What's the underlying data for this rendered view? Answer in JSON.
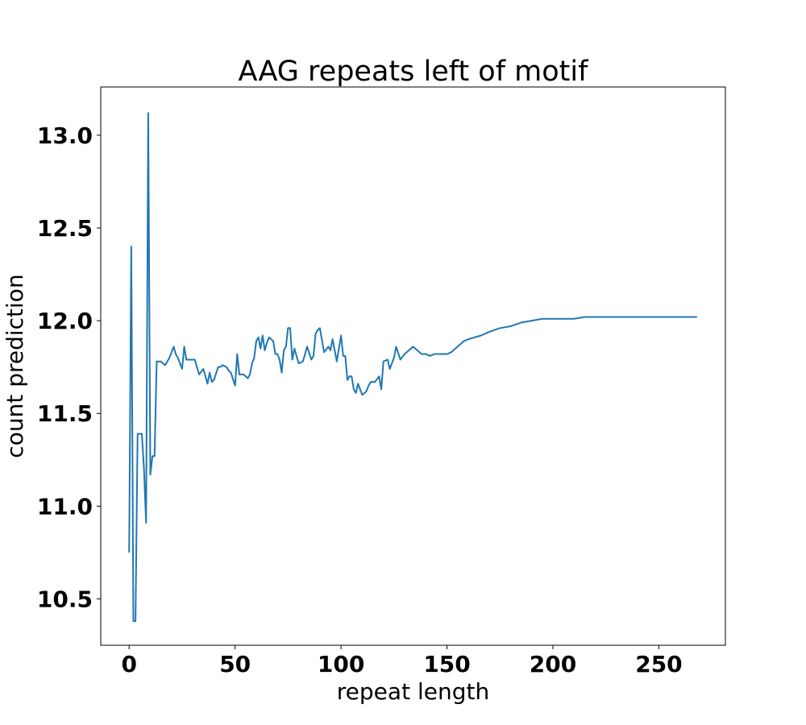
{
  "chart_data": {
    "type": "line",
    "title": "AAG repeats left of motif",
    "xlabel": "repeat length",
    "ylabel": "count prediction",
    "xlim": [
      -13.4,
      281.4
    ],
    "ylim": [
      10.25,
      13.26
    ],
    "x_ticks": [
      0,
      50,
      100,
      150,
      200,
      250
    ],
    "y_ticks": [
      10.5,
      11.0,
      11.5,
      12.0,
      12.5,
      13.0
    ],
    "x_tick_labels": [
      "0",
      "50",
      "100",
      "150",
      "200",
      "250"
    ],
    "y_tick_labels": [
      "10.5",
      "11.0",
      "11.5",
      "12.0",
      "12.5",
      "13.0"
    ],
    "grid": false,
    "series": [
      {
        "color": "#1f77b4",
        "x": [
          0,
          1,
          2,
          3,
          4,
          5,
          6,
          7,
          8,
          9,
          10,
          11,
          12,
          13,
          15,
          17,
          19,
          21,
          22,
          23,
          25,
          26,
          27,
          29,
          31,
          33,
          35,
          36,
          37,
          38,
          39,
          40,
          42,
          43,
          44,
          46,
          47,
          48,
          50,
          51,
          52,
          54,
          56,
          57,
          58,
          59,
          60,
          61,
          62,
          63,
          64,
          65,
          66,
          68,
          69,
          70,
          71,
          72,
          73,
          74,
          75,
          76,
          77,
          78,
          80,
          82,
          84,
          86,
          87,
          88,
          89,
          90,
          92,
          94,
          95,
          96,
          98,
          100,
          101,
          102,
          103,
          104,
          105,
          106,
          107,
          108,
          110,
          112,
          113,
          114,
          116,
          118,
          119,
          120,
          122,
          123,
          124,
          125,
          126,
          128,
          130,
          132,
          134,
          136,
          138,
          140,
          142,
          144,
          146,
          148,
          150,
          152,
          154,
          156,
          158,
          160,
          163,
          166,
          170,
          175,
          180,
          185,
          190,
          195,
          200,
          205,
          210,
          215,
          220,
          225,
          230,
          240,
          250,
          260,
          268
        ],
        "y": [
          10.75,
          12.4,
          10.38,
          10.38,
          11.39,
          11.39,
          11.39,
          11.2,
          10.91,
          13.12,
          11.17,
          11.27,
          11.27,
          11.78,
          11.78,
          11.76,
          11.8,
          11.86,
          11.82,
          11.8,
          11.74,
          11.86,
          11.79,
          11.79,
          11.79,
          11.71,
          11.74,
          11.7,
          11.66,
          11.72,
          11.67,
          11.68,
          11.75,
          11.75,
          11.76,
          11.75,
          11.73,
          11.72,
          11.65,
          11.82,
          11.71,
          11.71,
          11.69,
          11.71,
          11.77,
          11.8,
          11.89,
          11.91,
          11.85,
          11.92,
          11.84,
          11.88,
          11.91,
          11.89,
          11.82,
          11.82,
          11.79,
          11.72,
          11.84,
          11.86,
          11.96,
          11.96,
          11.79,
          11.85,
          11.77,
          11.78,
          11.86,
          11.79,
          11.81,
          11.93,
          11.95,
          11.96,
          11.83,
          11.86,
          11.84,
          11.9,
          11.78,
          11.92,
          11.81,
          11.81,
          11.68,
          11.7,
          11.7,
          11.63,
          11.61,
          11.66,
          11.6,
          11.62,
          11.65,
          11.67,
          11.67,
          11.7,
          11.63,
          11.78,
          11.79,
          11.74,
          11.77,
          11.8,
          11.86,
          11.79,
          11.82,
          11.84,
          11.86,
          11.84,
          11.82,
          11.82,
          11.81,
          11.82,
          11.82,
          11.82,
          11.82,
          11.83,
          11.85,
          11.87,
          11.89,
          11.9,
          11.91,
          11.92,
          11.94,
          11.96,
          11.97,
          11.99,
          12.0,
          12.01,
          12.01,
          12.01,
          12.01,
          12.02,
          12.02,
          12.02,
          12.02,
          12.02,
          12.02,
          12.02,
          12.02
        ]
      }
    ]
  }
}
